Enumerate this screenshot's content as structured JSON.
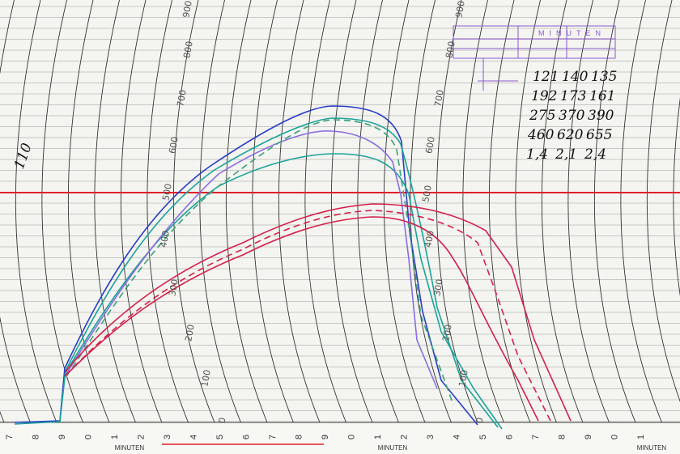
{
  "scale_left": [
    "900",
    "800",
    "700",
    "600",
    "500",
    "400",
    "300",
    "200",
    "100",
    "0"
  ],
  "scale_right": [
    "900",
    "800",
    "700",
    "600",
    "500",
    "400",
    "300",
    "200",
    "100",
    "0"
  ],
  "minute_digits": [
    "7",
    "8",
    "9",
    "0",
    "1",
    "2",
    "3",
    "4",
    "5",
    "6",
    "7",
    "8",
    "9",
    "0",
    "1",
    "2",
    "3",
    "4",
    "5",
    "6",
    "7",
    "8",
    "9",
    "0",
    "1"
  ],
  "minute_labels": [
    "MINUTEN",
    "MINUTEN",
    "MINUTEN"
  ],
  "stamp": "MINUTEN",
  "handwritten": [
    [
      "121",
      "140",
      "135"
    ],
    [
      "192",
      "173",
      "161"
    ],
    [
      "275",
      "370",
      "390"
    ],
    [
      "460",
      "620",
      "655"
    ],
    [
      "1,4",
      "2,1",
      "2,4"
    ]
  ],
  "margin_note": "110"
}
